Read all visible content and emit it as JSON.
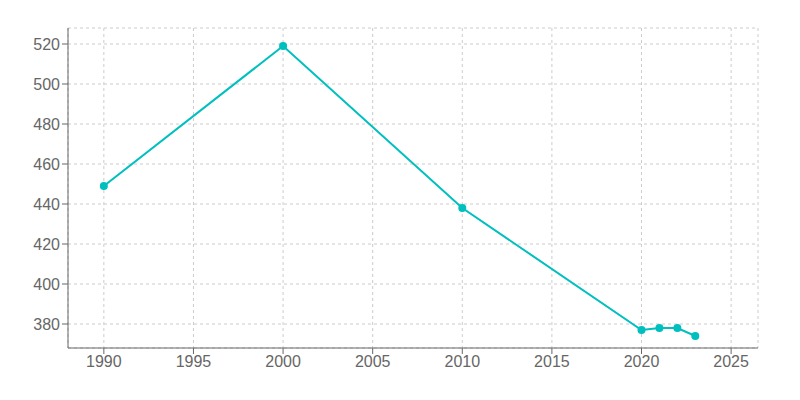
{
  "chart_data": {
    "type": "line",
    "x": [
      1990,
      2000,
      2010,
      2020,
      2021,
      2022,
      2023
    ],
    "values": [
      449,
      519,
      438,
      377,
      378,
      378,
      374
    ],
    "color": "#00BFBF",
    "marker": "circle",
    "xlim": [
      1988,
      2026.5
    ],
    "ylim": [
      368,
      528
    ],
    "xticks": [
      1990,
      1995,
      2000,
      2005,
      2010,
      2015,
      2020,
      2025
    ],
    "yticks": [
      380,
      400,
      420,
      440,
      460,
      480,
      500,
      520
    ],
    "grid": true
  }
}
